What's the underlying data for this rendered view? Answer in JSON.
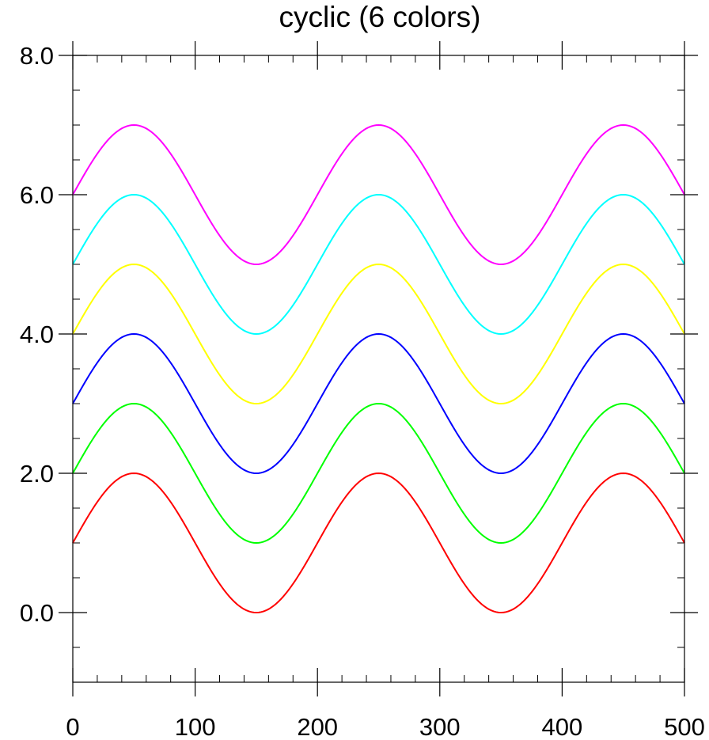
{
  "chart_data": {
    "type": "line",
    "title": "cyclic (6 colors)",
    "xlabel": "",
    "ylabel": "",
    "xlim": [
      0,
      500
    ],
    "ylim": [
      -1,
      8
    ],
    "grid": false,
    "legend": "none",
    "x_ticks": [
      0,
      100,
      200,
      300,
      400,
      500
    ],
    "x_tick_labels": [
      "0",
      "100",
      "200",
      "300",
      "400",
      "500"
    ],
    "y_ticks": [
      0,
      2,
      4,
      6,
      8
    ],
    "y_tick_labels": [
      "0.0",
      "2.0",
      "4.0",
      "6.0",
      "8.0"
    ],
    "x_minor_step": 20,
    "y_minor_step": 0.5,
    "x_period": 200,
    "amplitude": 1,
    "series": [
      {
        "color": "#ff0000",
        "offset": 1
      },
      {
        "color": "#00ff00",
        "offset": 2
      },
      {
        "color": "#0000ff",
        "offset": 3
      },
      {
        "color": "#ffff00",
        "offset": 4
      },
      {
        "color": "#00ffff",
        "offset": 5
      },
      {
        "color": "#ff00ff",
        "offset": 6
      }
    ]
  }
}
